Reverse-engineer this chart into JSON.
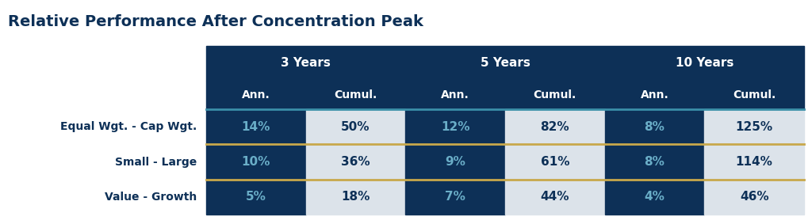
{
  "title": "Relative Performance After Concentration Peak",
  "title_color": "#0d3057",
  "title_fontsize": 14,
  "background_color": "#ffffff",
  "header_bg_color": "#0d3057",
  "header_text_color": "#ffffff",
  "row_label_color": "#0d3057",
  "cell_light_bg": "#dce3ea",
  "cell_light_text": "#0d3057",
  "ann_col_bg": "#0d3057",
  "ann_col_text": "#6aaec8",
  "divider_gold": "#c8a84b",
  "divider_teal": "#3a8fa8",
  "row_labels": [
    "Equal Wgt. - Cap Wgt.",
    "Small - Large",
    "Value - Growth"
  ],
  "period_labels": [
    "3 Years",
    "5 Years",
    "10 Years"
  ],
  "sub_labels": [
    "Ann.",
    "Cumul.",
    "Ann.",
    "Cumul.",
    "Ann.",
    "Cumul."
  ],
  "data": [
    [
      "14%",
      "50%",
      "12%",
      "82%",
      "8%",
      "125%"
    ],
    [
      "10%",
      "36%",
      "9%",
      "61%",
      "8%",
      "114%"
    ],
    [
      "5%",
      "18%",
      "7%",
      "44%",
      "4%",
      "46%"
    ]
  ],
  "fig_width": 10.24,
  "fig_height": 2.83,
  "dpi": 100
}
